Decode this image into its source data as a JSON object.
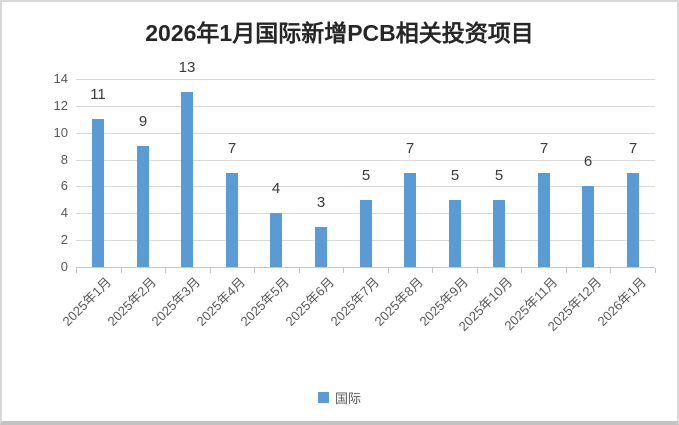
{
  "chart_data": {
    "type": "bar",
    "title": "2026年1月国际新增PCB相关投资项目",
    "categories": [
      "2025年1月",
      "2025年2月",
      "2025年3月",
      "2025年4月",
      "2025年5月",
      "2025年6月",
      "2025年7月",
      "2025年8月",
      "2025年9月",
      "2025年10月",
      "2025年11月",
      "2025年12月",
      "2026年1月"
    ],
    "series": [
      {
        "name": "国际",
        "values": [
          11,
          9,
          13,
          7,
          4,
          3,
          5,
          7,
          5,
          5,
          7,
          6,
          7
        ]
      }
    ],
    "ylabel": "",
    "xlabel": "",
    "ylim": [
      0,
      14
    ],
    "ytick_step": 2,
    "yticks": [
      0,
      2,
      4,
      6,
      8,
      10,
      12,
      14
    ],
    "grid": true,
    "data_labels": true,
    "legend_position": "bottom",
    "colors": {
      "bar": "#5B9BD5",
      "gridline": "#D9D9D9",
      "axis": "#C6C6C6",
      "data_label": "#3A3A3A",
      "tick_label": "#595959",
      "title": "#262626"
    }
  }
}
